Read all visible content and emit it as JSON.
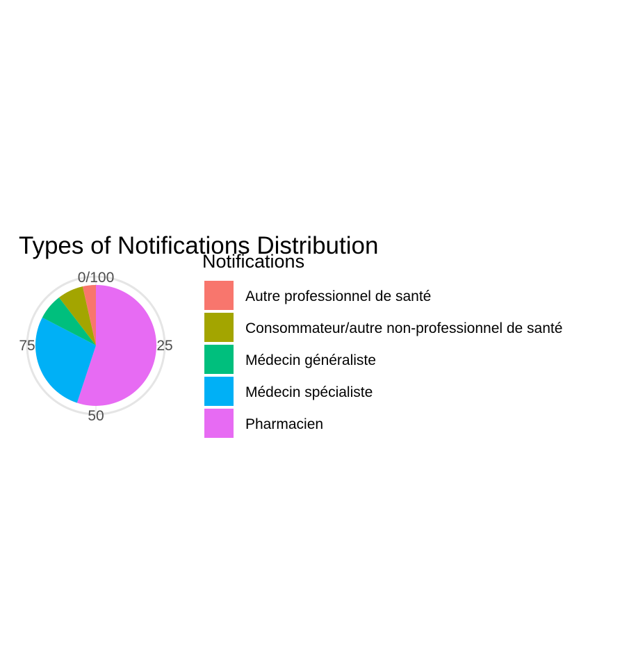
{
  "chart_data": {
    "type": "pie",
    "title": "Types of Notifications Distribution",
    "legend_title": "Notifications",
    "legend_position": "right",
    "theta_ticks": [
      "0/100",
      "25",
      "50",
      "75"
    ],
    "slices": [
      {
        "label": "Autre professionnel de santé",
        "value": 3.2,
        "color": "#F8766D"
      },
      {
        "label": "Consommateur/autre non-professionnel de santé",
        "value": 6.3,
        "color": "#A3A500"
      },
      {
        "label": "Médecin généraliste",
        "value": 6.3,
        "color": "#00BF7D"
      },
      {
        "label": "Médecin spécialiste",
        "value": 25.1,
        "color": "#00B0F6"
      },
      {
        "label": "Pharmacien",
        "value": 50.1,
        "color": "#E76BF3"
      }
    ]
  }
}
